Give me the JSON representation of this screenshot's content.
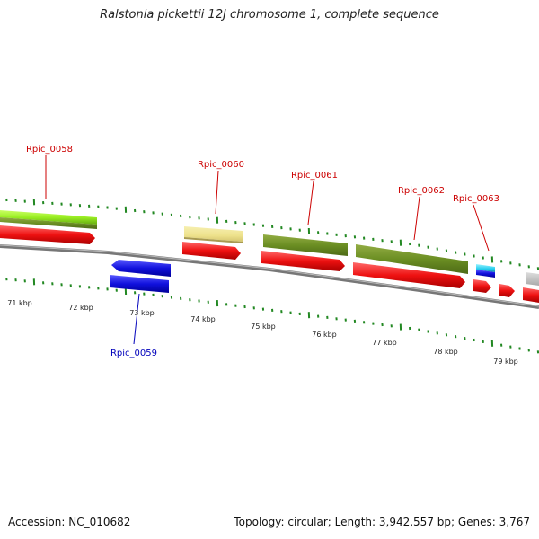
{
  "title": "Ralstonia pickettii 12J chromosome 1, complete sequence",
  "accession": "Accession: NC_010682",
  "summary": "Topology: circular; Length: 3,942,557 bp; Genes: 3,767",
  "colors": {
    "forward_cds": "#ee1111",
    "reverse_cds": "#1111dd",
    "forward_label": "#cc0000",
    "reverse_label": "#0000bb",
    "tick": "#228822",
    "backbone": "#888888"
  },
  "ticks": [
    {
      "label": "71 kbp"
    },
    {
      "label": "72 kbp"
    },
    {
      "label": "73 kbp"
    },
    {
      "label": "74 kbp"
    },
    {
      "label": "75 kbp"
    },
    {
      "label": "76 kbp"
    },
    {
      "label": "77 kbp"
    },
    {
      "label": "78 kbp"
    },
    {
      "label": "79 kbp"
    }
  ],
  "genes": [
    {
      "name": "Rpic_0058",
      "strand": "forward"
    },
    {
      "name": "Rpic_0059",
      "strand": "reverse"
    },
    {
      "name": "Rpic_0060",
      "strand": "forward"
    },
    {
      "name": "Rpic_0061",
      "strand": "forward"
    },
    {
      "name": "Rpic_0062",
      "strand": "forward"
    },
    {
      "name": "Rpic_0063",
      "strand": "forward"
    }
  ]
}
